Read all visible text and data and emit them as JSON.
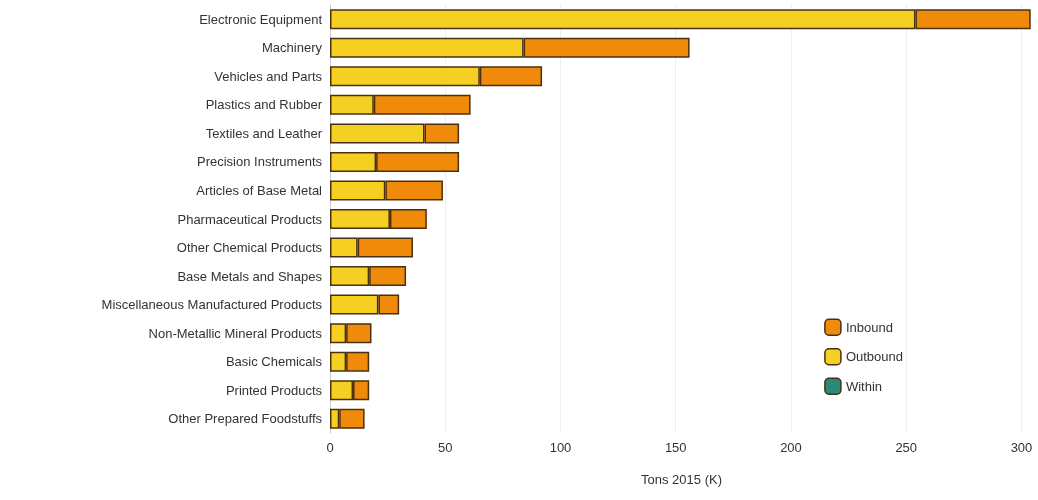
{
  "chart_data": {
    "type": "bar",
    "orientation": "horizontal",
    "stacked": true,
    "xlabel": "Tons 2015 (K)",
    "categories": [
      "Electronic Equipment",
      "Machinery",
      "Vehicles and Parts",
      "Plastics and Rubber",
      "Textiles and Leather",
      "Precision Instruments",
      "Articles of Base Metal",
      "Pharmaceutical Products",
      "Other Chemical Products",
      "Base Metals and Shapes",
      "Miscellaneous Manufactured Products",
      "Non-Metallic Mineral Products",
      "Basic Chemicals",
      "Printed Products",
      "Other Prepared Foodstuffs"
    ],
    "series": [
      {
        "name": "Within",
        "color": "#2a8a78",
        "values": [
          null,
          null,
          null,
          null,
          null,
          null,
          null,
          null,
          null,
          null,
          null,
          null,
          null,
          null,
          null
        ]
      },
      {
        "name": "Outbound",
        "color": "#f5d022",
        "values": [
          254,
          84,
          65,
          19,
          41,
          20,
          24,
          26,
          12,
          17,
          21,
          7,
          7,
          10,
          4
        ]
      },
      {
        "name": "Inbound",
        "color": "#f08a0b",
        "values": [
          50,
          72,
          27,
          42,
          15,
          36,
          25,
          16,
          24,
          16,
          9,
          11,
          10,
          7,
          11
        ]
      }
    ],
    "xlim": [
      0,
      305
    ],
    "xticks": [
      0,
      50,
      100,
      150,
      200,
      250,
      300
    ],
    "grid": "x",
    "legend": "bottom right"
  }
}
